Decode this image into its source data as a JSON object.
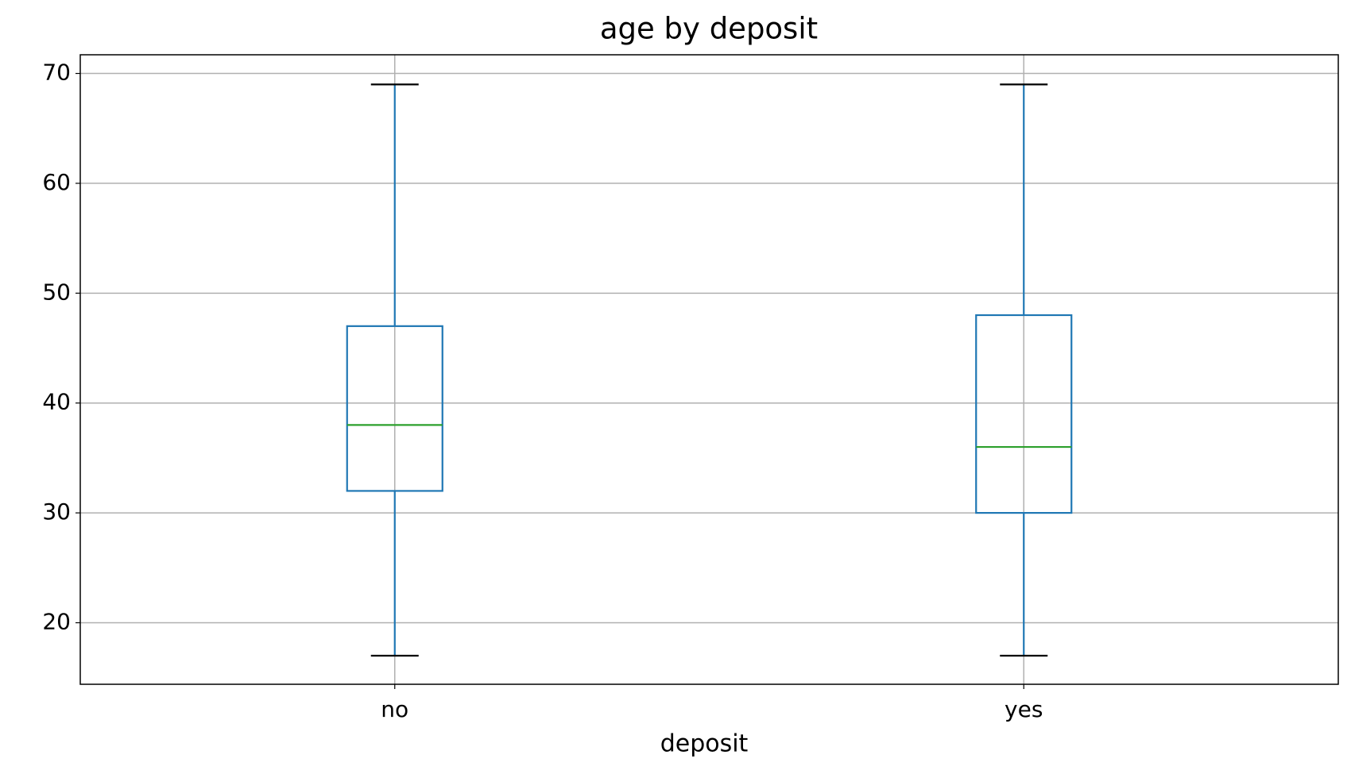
{
  "chart_data": {
    "type": "box",
    "title": "age by deposit",
    "x_label": "deposit",
    "categories": [
      "no",
      "yes"
    ],
    "boxes": [
      {
        "whislo": 17,
        "q1": 32,
        "med": 38,
        "q3": 47,
        "whishi": 69
      },
      {
        "whislo": 17,
        "q1": 30,
        "med": 36,
        "q3": 48,
        "whishi": 69
      }
    ],
    "box_color": "#1f77b4",
    "median_color": "#2ca02c",
    "cap_color": "#000000",
    "ylim": [
      14.4,
      71.7
    ],
    "yticks": [
      20,
      30,
      40,
      50,
      60,
      70
    ],
    "grid": true
  }
}
